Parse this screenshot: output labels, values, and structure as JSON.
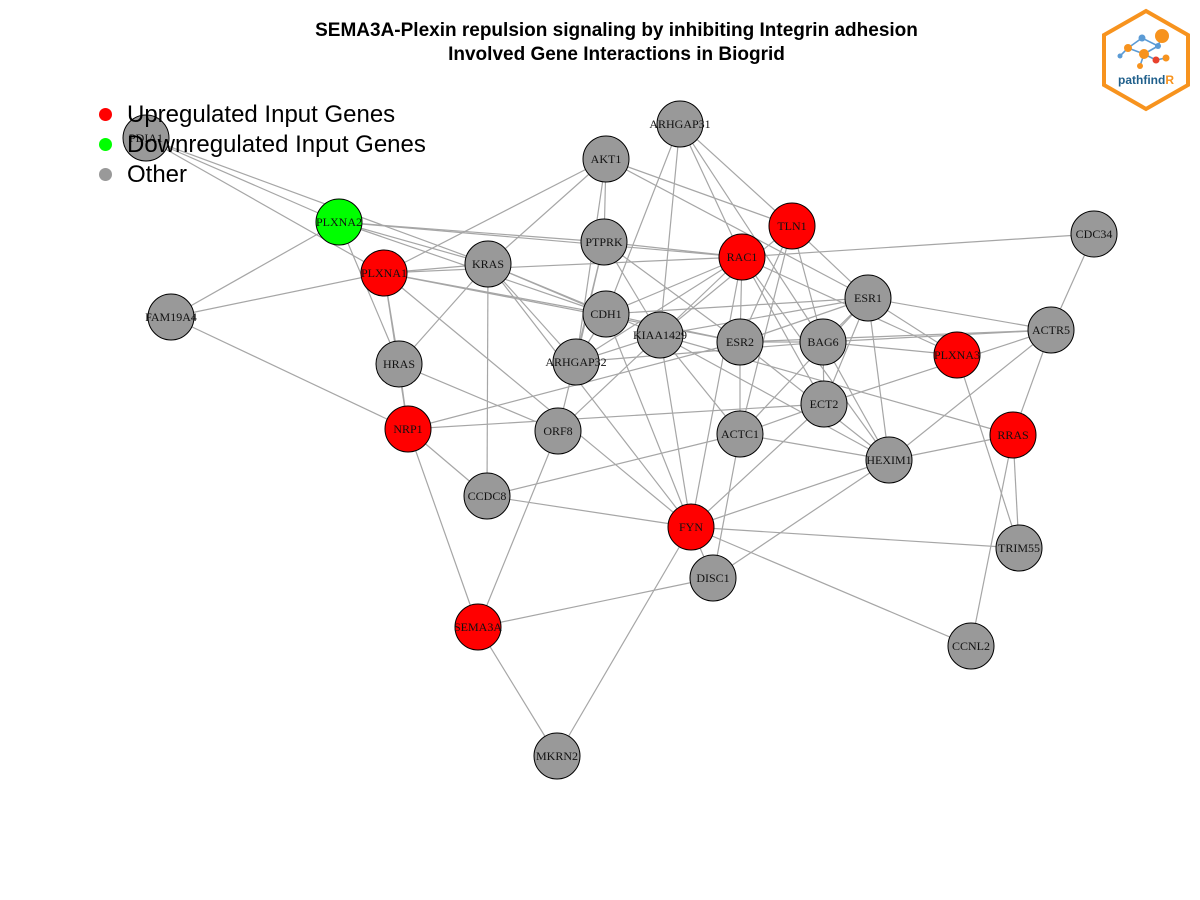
{
  "title": {
    "line1": "SEMA3A-Plexin repulsion signaling by inhibiting Integrin adhesion",
    "line2": "Involved Gene Interactions in Biogrid"
  },
  "legend": {
    "items": [
      {
        "label": "Upregulated Input Genes",
        "color": "#ff0000"
      },
      {
        "label": "Downregulated Input Genes",
        "color": "#00ff00"
      },
      {
        "label": "Other",
        "color": "#999999"
      }
    ]
  },
  "logo": {
    "text_main": "pathfind",
    "text_accent": "R",
    "border_color": "#f7931e",
    "text_color": "#1f5f8b"
  },
  "colors": {
    "up": "#ff0000",
    "down": "#00ff00",
    "other": "#999999",
    "edge": "#a6a6a6"
  },
  "nodes": [
    {
      "id": "PDIA1",
      "status": "other"
    },
    {
      "id": "ARHGAP31",
      "status": "other"
    },
    {
      "id": "AKT1",
      "status": "other"
    },
    {
      "id": "TLN1",
      "status": "up"
    },
    {
      "id": "PLXNA2",
      "status": "down"
    },
    {
      "id": "PTPRK",
      "status": "other"
    },
    {
      "id": "RAC1",
      "status": "up"
    },
    {
      "id": "CDC34",
      "status": "other"
    },
    {
      "id": "PLXNA1",
      "status": "up"
    },
    {
      "id": "KRAS",
      "status": "other"
    },
    {
      "id": "ESR1",
      "status": "other"
    },
    {
      "id": "FAM19A4",
      "status": "other"
    },
    {
      "id": "CDH1",
      "status": "other"
    },
    {
      "id": "KIAA1429",
      "status": "other"
    },
    {
      "id": "ACTR5",
      "status": "other"
    },
    {
      "id": "ESR2",
      "status": "other"
    },
    {
      "id": "BAG6",
      "status": "other"
    },
    {
      "id": "HRAS",
      "status": "other"
    },
    {
      "id": "ARHGAP32",
      "status": "other"
    },
    {
      "id": "PLXNA3",
      "status": "up"
    },
    {
      "id": "ECT2",
      "status": "other"
    },
    {
      "id": "NRP1",
      "status": "up"
    },
    {
      "id": "ORF8",
      "status": "other"
    },
    {
      "id": "ACTC1",
      "status": "other"
    },
    {
      "id": "RRAS",
      "status": "up"
    },
    {
      "id": "HEXIM1",
      "status": "other"
    },
    {
      "id": "CCDC8",
      "status": "other"
    },
    {
      "id": "FYN",
      "status": "up"
    },
    {
      "id": "TRIM55",
      "status": "other"
    },
    {
      "id": "DISC1",
      "status": "other"
    },
    {
      "id": "SEMA3A",
      "status": "up"
    },
    {
      "id": "CCNL2",
      "status": "other"
    },
    {
      "id": "MKRN2",
      "status": "other"
    }
  ],
  "edges": [
    [
      "PDIA1",
      "PLXNA2"
    ],
    [
      "PDIA1",
      "PLXNA1"
    ],
    [
      "PDIA1",
      "KRAS"
    ],
    [
      "PLXNA2",
      "FAM19A4"
    ],
    [
      "PLXNA2",
      "KRAS"
    ],
    [
      "PLXNA2",
      "PTPRK"
    ],
    [
      "PLXNA2",
      "CDH1"
    ],
    [
      "PLXNA2",
      "HRAS"
    ],
    [
      "PLXNA2",
      "RAC1"
    ],
    [
      "PLXNA1",
      "FAM19A4"
    ],
    [
      "PLXNA1",
      "HRAS"
    ],
    [
      "PLXNA1",
      "NRP1"
    ],
    [
      "PLXNA1",
      "KRAS"
    ],
    [
      "PLXNA1",
      "CDH1"
    ],
    [
      "PLXNA1",
      "FYN"
    ],
    [
      "PLXNA1",
      "ESR2"
    ],
    [
      "PLXNA1",
      "RAC1"
    ],
    [
      "PLXNA1",
      "AKT1"
    ],
    [
      "FAM19A4",
      "NRP1"
    ],
    [
      "AKT1",
      "ARHGAP32"
    ],
    [
      "AKT1",
      "PTPRK"
    ],
    [
      "AKT1",
      "TLN1"
    ],
    [
      "AKT1",
      "ESR1"
    ],
    [
      "AKT1",
      "KRAS"
    ],
    [
      "ARHGAP31",
      "KIAA1429"
    ],
    [
      "ARHGAP31",
      "RAC1"
    ],
    [
      "ARHGAP31",
      "TLN1"
    ],
    [
      "ARHGAP31",
      "BAG6"
    ],
    [
      "ARHGAP31",
      "CDH1"
    ],
    [
      "TLN1",
      "ESR2"
    ],
    [
      "TLN1",
      "BAG6"
    ],
    [
      "TLN1",
      "ESR1"
    ],
    [
      "TLN1",
      "KIAA1429"
    ],
    [
      "TLN1",
      "ACTC1"
    ],
    [
      "RAC1",
      "CDC34"
    ],
    [
      "RAC1",
      "KIAA1429"
    ],
    [
      "RAC1",
      "ESR2"
    ],
    [
      "RAC1",
      "ECT2"
    ],
    [
      "RAC1",
      "PLXNA3"
    ],
    [
      "RAC1",
      "FYN"
    ],
    [
      "RAC1",
      "CDH1"
    ],
    [
      "RAC1",
      "ARHGAP32"
    ],
    [
      "RAC1",
      "HEXIM1"
    ],
    [
      "RAC1",
      "PTPRK"
    ],
    [
      "KRAS",
      "CDH1"
    ],
    [
      "KRAS",
      "HRAS"
    ],
    [
      "KRAS",
      "ARHGAP32"
    ],
    [
      "KRAS",
      "CCDC8"
    ],
    [
      "KRAS",
      "FYN"
    ],
    [
      "KRAS",
      "KIAA1429"
    ],
    [
      "PTPRK",
      "ARHGAP32"
    ],
    [
      "PTPRK",
      "ESR2"
    ],
    [
      "PTPRK",
      "KIAA1429"
    ],
    [
      "PTPRK",
      "ORF8"
    ],
    [
      "CDH1",
      "ESR1"
    ],
    [
      "CDH1",
      "ARHGAP32"
    ],
    [
      "CDH1",
      "FYN"
    ],
    [
      "CDH1",
      "ESR2"
    ],
    [
      "KIAA1429",
      "ESR1"
    ],
    [
      "KIAA1429",
      "HEXIM1"
    ],
    [
      "KIAA1429",
      "ACTC1"
    ],
    [
      "KIAA1429",
      "ARHGAP32"
    ],
    [
      "KIAA1429",
      "FYN"
    ],
    [
      "KIAA1429",
      "ORF8"
    ],
    [
      "ESR2",
      "ACTR5"
    ],
    [
      "ESR2",
      "ACTC1"
    ],
    [
      "ESR2",
      "HEXIM1"
    ],
    [
      "ESR2",
      "BAG6"
    ],
    [
      "ESR2",
      "ESR1"
    ],
    [
      "ESR2",
      "NRP1"
    ],
    [
      "BAG6",
      "PLXNA3"
    ],
    [
      "BAG6",
      "ESR1"
    ],
    [
      "BAG6",
      "ACTR5"
    ],
    [
      "BAG6",
      "ECT2"
    ],
    [
      "BAG6",
      "HEXIM1"
    ],
    [
      "BAG6",
      "ARHGAP32"
    ],
    [
      "ESR1",
      "ACTR5"
    ],
    [
      "ESR1",
      "PLXNA3"
    ],
    [
      "ESR1",
      "HEXIM1"
    ],
    [
      "ESR1",
      "ACTC1"
    ],
    [
      "ESR1",
      "ECT2"
    ],
    [
      "CDC34",
      "ACTR5"
    ],
    [
      "ACTR5",
      "RRAS"
    ],
    [
      "ACTR5",
      "HEXIM1"
    ],
    [
      "ACTR5",
      "ECT2"
    ],
    [
      "PLXNA3",
      "TRIM55"
    ],
    [
      "RRAS",
      "HEXIM1"
    ],
    [
      "RRAS",
      "TRIM55"
    ],
    [
      "RRAS",
      "CCNL2"
    ],
    [
      "RRAS",
      "KIAA1429"
    ],
    [
      "ECT2",
      "ACTC1"
    ],
    [
      "ECT2",
      "FYN"
    ],
    [
      "ECT2",
      "NRP1"
    ],
    [
      "ACTC1",
      "HEXIM1"
    ],
    [
      "ACTC1",
      "CCDC8"
    ],
    [
      "ACTC1",
      "DISC1"
    ],
    [
      "HEXIM1",
      "FYN"
    ],
    [
      "HEXIM1",
      "DISC1"
    ],
    [
      "HRAS",
      "NRP1"
    ],
    [
      "HRAS",
      "ORF8"
    ],
    [
      "NRP1",
      "SEMA3A"
    ],
    [
      "NRP1",
      "CCDC8"
    ],
    [
      "ORF8",
      "SEMA3A"
    ],
    [
      "CCDC8",
      "FYN"
    ],
    [
      "FYN",
      "DISC1"
    ],
    [
      "FYN",
      "TRIM55"
    ],
    [
      "FYN",
      "CCNL2"
    ],
    [
      "FYN",
      "MKRN2"
    ],
    [
      "SEMA3A",
      "DISC1"
    ],
    [
      "SEMA3A",
      "MKRN2"
    ]
  ]
}
